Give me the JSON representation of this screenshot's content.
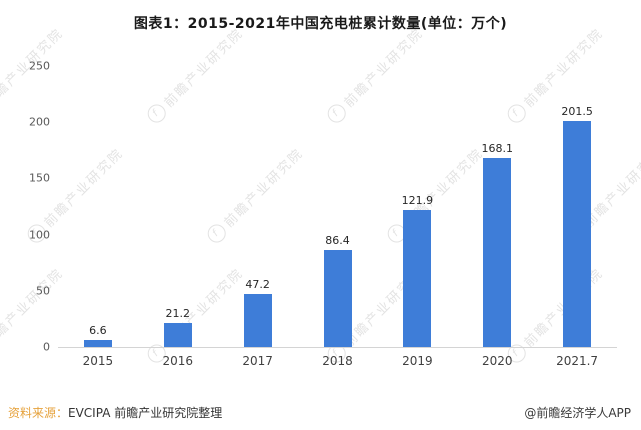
{
  "title": "图表1：2015-2021年中国充电桩累计数量(单位：万个)",
  "chart_data": {
    "type": "bar",
    "title": "图表1：2015-2021年中国充电桩累计数量(单位：万个)",
    "categories": [
      "2015",
      "2016",
      "2017",
      "2018",
      "2019",
      "2020",
      "2021.7"
    ],
    "values": [
      6.6,
      21.2,
      47.2,
      86.4,
      121.9,
      168.1,
      201.5
    ],
    "xlabel": "",
    "ylabel": "",
    "ylim": [
      0,
      250
    ],
    "yticks": [
      0,
      50,
      100,
      150,
      200,
      250
    ],
    "bar_color": "#3e7dd8",
    "grid": false,
    "legend": "none"
  },
  "footer": {
    "source_label": "资料来源：",
    "source_text": "EVCIPA 前瞻产业研究院整理",
    "brand": "@前瞻经济学人APP"
  },
  "watermark": {
    "text": "前瞻产业研究院",
    "logo_glyph": "f"
  },
  "colors": {
    "bar": "#3e7dd8",
    "source_label": "#e6a23c",
    "title_text": "#1a1a1a",
    "axis_text": "#595959",
    "watermark": "#e3e3e3"
  }
}
